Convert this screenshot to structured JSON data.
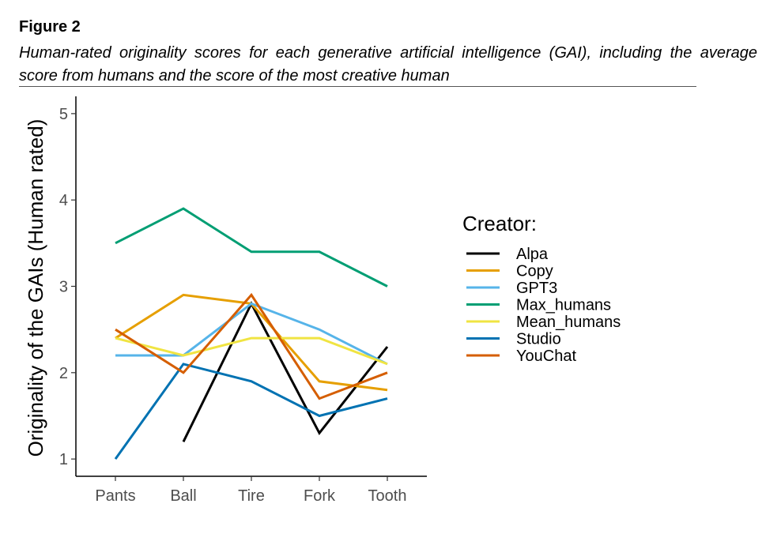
{
  "figure": {
    "label": "Figure 2",
    "caption": "Human-rated originality scores for each generative artificial intelligence (GAI), including the average score from humans and the score of the most creative human"
  },
  "chart_data": {
    "type": "line",
    "title": "",
    "xlabel": "",
    "ylabel": "Originality of the GAIs (Human rated)",
    "categories": [
      "Pants",
      "Ball",
      "Tire",
      "Fork",
      "Tooth"
    ],
    "ylim": [
      0.8,
      5.2
    ],
    "yticks": [
      1,
      2,
      3,
      4,
      5
    ],
    "grid": false,
    "legend": {
      "title": "Creator:",
      "position": "right"
    },
    "series": [
      {
        "name": "Alpa",
        "color": "#000000",
        "values": [
          null,
          1.2,
          2.8,
          1.3,
          2.3
        ]
      },
      {
        "name": "Copy",
        "color": "#E69F00",
        "values": [
          2.4,
          2.9,
          2.8,
          1.9,
          1.8
        ]
      },
      {
        "name": "GPT3",
        "color": "#56B4E9",
        "values": [
          2.2,
          2.2,
          2.8,
          2.5,
          2.1
        ]
      },
      {
        "name": "Max_humans",
        "color": "#009E73",
        "values": [
          3.5,
          3.9,
          3.4,
          3.4,
          3.0
        ]
      },
      {
        "name": "Mean_humans",
        "color": "#F0E442",
        "values": [
          2.4,
          2.2,
          2.4,
          2.4,
          2.1
        ]
      },
      {
        "name": "Studio",
        "color": "#0072B2",
        "values": [
          1.0,
          2.1,
          1.9,
          1.5,
          1.7
        ]
      },
      {
        "name": "YouChat",
        "color": "#D55E00",
        "values": [
          2.5,
          2.0,
          2.9,
          1.7,
          2.0
        ]
      }
    ]
  }
}
